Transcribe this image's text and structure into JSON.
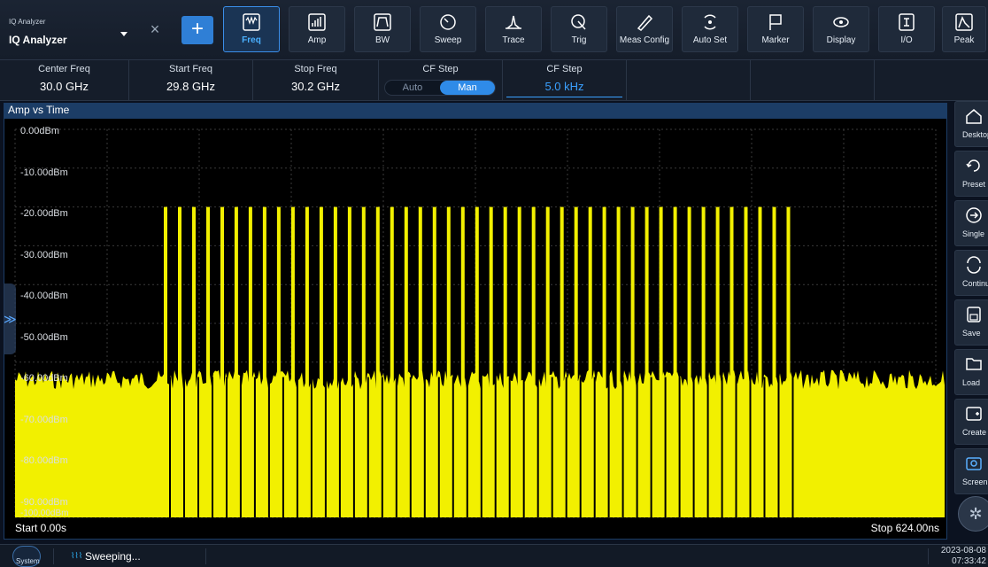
{
  "app_selector": {
    "small_label": "IQ Analyzer",
    "title": "IQ Analyzer"
  },
  "toolbar": {
    "buttons": [
      {
        "label": "Freq",
        "icon": "freq-icon",
        "active": true
      },
      {
        "label": "Amp",
        "icon": "amp-icon"
      },
      {
        "label": "BW",
        "icon": "bw-icon"
      },
      {
        "label": "Sweep",
        "icon": "sweep-icon"
      },
      {
        "label": "Trace",
        "icon": "trace-icon"
      },
      {
        "label": "Trig",
        "icon": "trig-icon"
      },
      {
        "label": "Meas Config",
        "icon": "meas-config-icon"
      },
      {
        "label": "Auto Set",
        "icon": "auto-set-icon"
      },
      {
        "label": "Marker",
        "icon": "marker-icon"
      },
      {
        "label": "Display",
        "icon": "display-icon"
      },
      {
        "label": "I/O",
        "icon": "io-icon"
      },
      {
        "label": "Peak",
        "icon": "peak-icon"
      }
    ]
  },
  "params": {
    "center_freq": {
      "label": "Center Freq",
      "value": "30.0 GHz"
    },
    "start_freq": {
      "label": "Start Freq",
      "value": "29.8 GHz"
    },
    "stop_freq": {
      "label": "Stop Freq",
      "value": "30.2 GHz"
    },
    "cf_step_mode": {
      "label": "CF Step",
      "options": [
        "Auto",
        "Man"
      ],
      "selected": "Man"
    },
    "cf_step_value": {
      "label": "CF Step",
      "value": "5.0 kHz"
    }
  },
  "trace": {
    "title": "Amp vs Time",
    "y_labels": [
      "0.00dBm",
      "-10.00dBm",
      "-20.00dBm",
      "-30.00dBm",
      "-40.00dBm",
      "-50.00dBm",
      "-60.00dBm",
      "-70.00dBm",
      "-80.00dBm",
      "-90.00dBm",
      "-100.00dBm"
    ],
    "start_label": "Start 0.00s",
    "stop_label": "Stop 624.00ns",
    "trace_color": "#f2f000",
    "y_range_dbm": [
      -100,
      0
    ],
    "noise_floor_dbm": -62,
    "burst_peak_dbm": -20,
    "burst_start_fraction": 0.16,
    "burst_end_fraction": 0.83,
    "burst_count": 45
  },
  "sidebar": {
    "buttons": [
      {
        "label": "Desktop",
        "icon": "home-icon"
      },
      {
        "label": "Preset",
        "icon": "preset-icon"
      },
      {
        "label": "Single",
        "icon": "single-icon"
      },
      {
        "label": "Continuous",
        "icon": "continuous-icon"
      },
      {
        "label": "Save",
        "icon": "save-icon"
      },
      {
        "label": "Load",
        "icon": "load-icon"
      },
      {
        "label": "Create View",
        "icon": "create-view-icon"
      },
      {
        "label": "Screen Shot",
        "icon": "screenshot-icon"
      }
    ]
  },
  "status": {
    "system_label": "System",
    "sweep_text": "Sweeping...",
    "date": "2023-08-08",
    "time": "07:33:42"
  }
}
